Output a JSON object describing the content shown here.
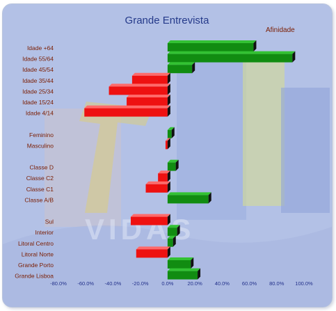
{
  "chart_data": {
    "type": "bar",
    "orientation": "horizontal",
    "title": "Grande Entrevista",
    "legend": "Afinidade",
    "legend_placement": "top-right",
    "categories": [
      "Idade +64",
      "Idade 55/64",
      "Idade 45/54",
      "Idade 35/44",
      "Idade 25/34",
      "Idade 15/24",
      "Idade 4/14",
      "Feminino",
      "Masculino",
      "Classe D",
      "Classe C2",
      "Classe C1",
      "Classe A/B",
      "Sul",
      "Interior",
      "Litoral Centro",
      "Litoral Norte",
      "Grande Porto",
      "Grande Lisboa"
    ],
    "values": [
      63.0,
      91.5,
      18.0,
      -26.0,
      -43.0,
      -30.0,
      -61.0,
      3.0,
      -1.5,
      6.0,
      -7.0,
      -16.0,
      30.0,
      -27.0,
      7.0,
      4.0,
      -23.0,
      17.0,
      22.0
    ],
    "groups_after_index": [
      6,
      8,
      12
    ],
    "xlim": [
      -80,
      100
    ],
    "x_ticks": [
      "-80.0%",
      "-60.0%",
      "-40.0%",
      "-20.0%",
      "0.0%",
      "20.0%",
      "40.0%",
      "60.0%",
      "80.0%",
      "100.0%"
    ],
    "grid": false,
    "colors": {
      "positive": "#118c11",
      "positive_top": "#33c233",
      "negative": "#ee1111",
      "negative_top": "#ff6a6a",
      "title": "#253a8a",
      "category_label": "#7a1c00",
      "tick_label": "#22308a",
      "legend": "#7a1c00"
    }
  }
}
